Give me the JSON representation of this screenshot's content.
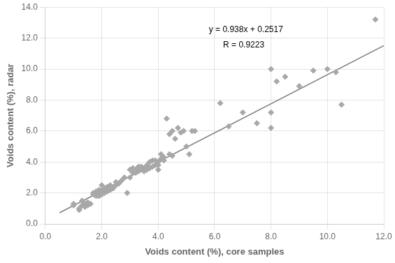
{
  "chart_data": {
    "type": "scatter",
    "xlabel": "Voids content (%), core samples",
    "ylabel": "Voids content (%), radar",
    "xlim": [
      0.0,
      12.0
    ],
    "ylim": [
      0.0,
      14.0
    ],
    "xticks": [
      {
        "value": 0.0,
        "label": "0.0"
      },
      {
        "value": 2.0,
        "label": "2.0"
      },
      {
        "value": 4.0,
        "label": "4.0"
      },
      {
        "value": 6.0,
        "label": "6.0"
      },
      {
        "value": 8.0,
        "label": "8.0"
      },
      {
        "value": 10.0,
        "label": "10.0"
      },
      {
        "value": 12.0,
        "label": "12.0"
      }
    ],
    "yticks": [
      {
        "value": 0.0,
        "label": "0.0"
      },
      {
        "value": 2.0,
        "label": "2.0"
      },
      {
        "value": 4.0,
        "label": "4.0"
      },
      {
        "value": 6.0,
        "label": "6.0"
      },
      {
        "value": 8.0,
        "label": "8.0"
      },
      {
        "value": 10.0,
        "label": "10.0"
      },
      {
        "value": 12.0,
        "label": "12.0"
      },
      {
        "value": 14.0,
        "label": "14.0"
      }
    ],
    "grid": true,
    "annotations": [
      "y = 0.938x + 0.2517",
      "R = 0.9223"
    ],
    "series": [
      {
        "type": "scatter",
        "marker": "diamond",
        "color": "#a8a8a8",
        "x": [
          1.0,
          1.0,
          1.2,
          1.2,
          1.3,
          1.3,
          1.4,
          1.4,
          1.5,
          1.5,
          1.6,
          1.7,
          1.7,
          1.8,
          1.8,
          1.9,
          1.9,
          1.9,
          2.0,
          2.0,
          2.0,
          2.0,
          2.1,
          2.1,
          2.1,
          2.2,
          2.2,
          2.3,
          2.3,
          2.3,
          2.4,
          2.5,
          2.5,
          2.6,
          2.7,
          2.8,
          2.9,
          3.0,
          3.0,
          3.1,
          3.1,
          3.2,
          3.2,
          3.3,
          3.3,
          3.4,
          3.4,
          3.5,
          3.5,
          3.6,
          3.6,
          3.7,
          3.7,
          3.8,
          3.8,
          3.9,
          3.9,
          4.0,
          4.0,
          4.0,
          4.1,
          4.1,
          4.2,
          4.2,
          4.3,
          4.4,
          4.4,
          4.5,
          4.5,
          4.6,
          4.7,
          4.8,
          4.9,
          5.0,
          5.1,
          5.2,
          5.3,
          6.2,
          6.5,
          7.0,
          7.5,
          8.0,
          8.0,
          8.0,
          8.2,
          8.5,
          9.0,
          9.5,
          10.0,
          10.3,
          10.5,
          11.7
        ],
        "values": [
          1.2,
          1.3,
          0.9,
          1.0,
          1.2,
          1.5,
          1.1,
          1.3,
          1.2,
          1.4,
          1.3,
          1.9,
          2.0,
          1.8,
          2.1,
          1.8,
          2.0,
          2.2,
          1.9,
          2.0,
          2.2,
          2.5,
          2.0,
          2.1,
          2.3,
          2.1,
          2.4,
          2.2,
          2.3,
          2.5,
          2.3,
          2.5,
          2.7,
          2.6,
          2.8,
          3.0,
          2.0,
          3.0,
          3.5,
          3.3,
          3.6,
          3.3,
          3.5,
          3.4,
          3.7,
          3.5,
          3.7,
          3.4,
          3.6,
          3.5,
          3.8,
          3.6,
          4.0,
          3.7,
          4.1,
          3.8,
          4.1,
          3.5,
          3.8,
          4.0,
          4.2,
          4.5,
          4.1,
          4.3,
          6.8,
          4.5,
          5.8,
          4.4,
          6.0,
          5.5,
          6.2,
          5.9,
          6.0,
          5.0,
          4.5,
          6.0,
          6.0,
          7.8,
          6.3,
          7.2,
          6.5,
          6.2,
          7.2,
          10.0,
          9.2,
          9.5,
          8.9,
          9.9,
          10.0,
          9.8,
          7.7,
          13.2
        ]
      },
      {
        "type": "line",
        "line_style": "solid",
        "color": "#808080",
        "x": [
          0.5,
          12.0
        ],
        "values": [
          0.7207,
          11.5077
        ]
      }
    ]
  }
}
